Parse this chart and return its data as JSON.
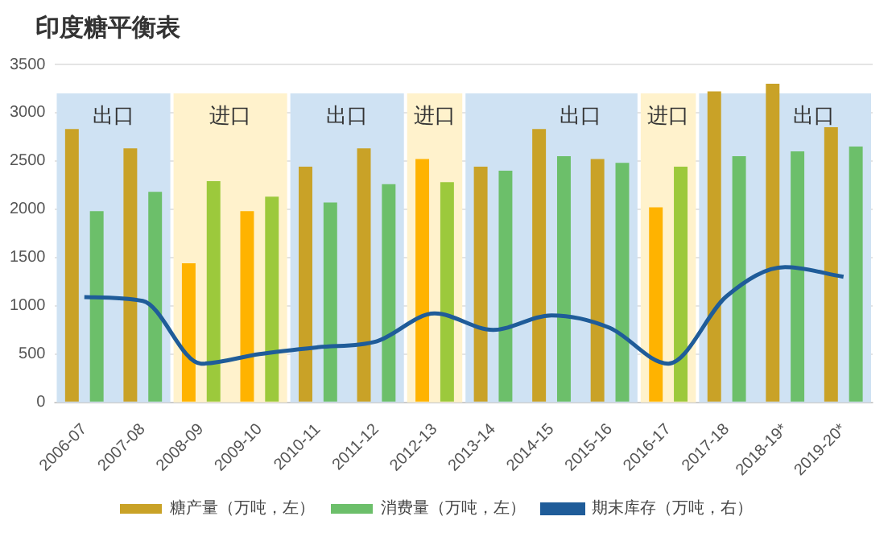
{
  "chart_data": {
    "type": "bar",
    "title": "印度糖平衡表",
    "categories": [
      "2006-07",
      "2007-08",
      "2008-09",
      "2009-10",
      "2010-11",
      "2011-12",
      "2012-13",
      "2013-14",
      "2014-15",
      "2015-16",
      "2016-17",
      "2017-18",
      "2018-19*",
      "2019-20*"
    ],
    "series": [
      {
        "name": "糖产量（万吨，左）",
        "color": "#c9a227",
        "colors": [
          "#c9a227",
          "#c9a227",
          "#ffb300",
          "#ffb300",
          "#c9a227",
          "#c9a227",
          "#ffb300",
          "#c9a227",
          "#c9a227",
          "#c9a227",
          "#ffb300",
          "#c9a227",
          "#c9a227",
          "#c9a227"
        ],
        "values": [
          2830,
          2630,
          1440,
          1980,
          2440,
          2630,
          2520,
          2440,
          2830,
          2520,
          2020,
          3220,
          3300,
          2850
        ]
      },
      {
        "name": "消费量（万吨，左）",
        "color": "#6cbf6a",
        "colors": [
          "#6cbf6a",
          "#6cbf6a",
          "#9cc93c",
          "#9cc93c",
          "#6cbf6a",
          "#6cbf6a",
          "#9cc93c",
          "#6cbf6a",
          "#6cbf6a",
          "#6cbf6a",
          "#9cc93c",
          "#6cbf6a",
          "#6cbf6a",
          "#6cbf6a"
        ],
        "values": [
          1980,
          2180,
          2290,
          2130,
          2070,
          2260,
          2280,
          2400,
          2550,
          2480,
          2440,
          2550,
          2600,
          2650
        ]
      },
      {
        "name": "期末库存（万吨，右）",
        "type": "line",
        "color": "#1f5c99",
        "values": [
          1090,
          1050,
          400,
          500,
          570,
          630,
          920,
          750,
          900,
          770,
          400,
          1100,
          1400,
          1300
        ]
      }
    ],
    "ylim": [
      0,
      3500
    ],
    "yticks": [
      0,
      500,
      1000,
      1500,
      2000,
      2500,
      3000,
      3500
    ],
    "grid": "y",
    "legend": "bottom",
    "marker": "none",
    "bands": [
      {
        "axis": "x",
        "from": "2006-07",
        "to": "2007-08",
        "label": "出口",
        "color": "#cfe2f3"
      },
      {
        "axis": "x",
        "from": "2008-09",
        "to": "2009-10",
        "label": "进口",
        "color": "#fff2cc"
      },
      {
        "axis": "x",
        "from": "2010-11",
        "to": "2011-12",
        "label": "出口",
        "color": "#cfe2f3"
      },
      {
        "axis": "x",
        "from": "2012-13",
        "to": "2012-13",
        "label": "进口",
        "color": "#fff2cc"
      },
      {
        "axis": "x",
        "from": "2013-14",
        "to": "2015-16",
        "label": "出口",
        "color": "#cfe2f3"
      },
      {
        "axis": "x",
        "from": "2016-17",
        "to": "2016-17",
        "label": "进口",
        "color": "#fff2cc"
      },
      {
        "axis": "x",
        "from": "2017-18",
        "to": "2019-20*",
        "label": "出口",
        "color": "#cfe2f3"
      }
    ]
  }
}
